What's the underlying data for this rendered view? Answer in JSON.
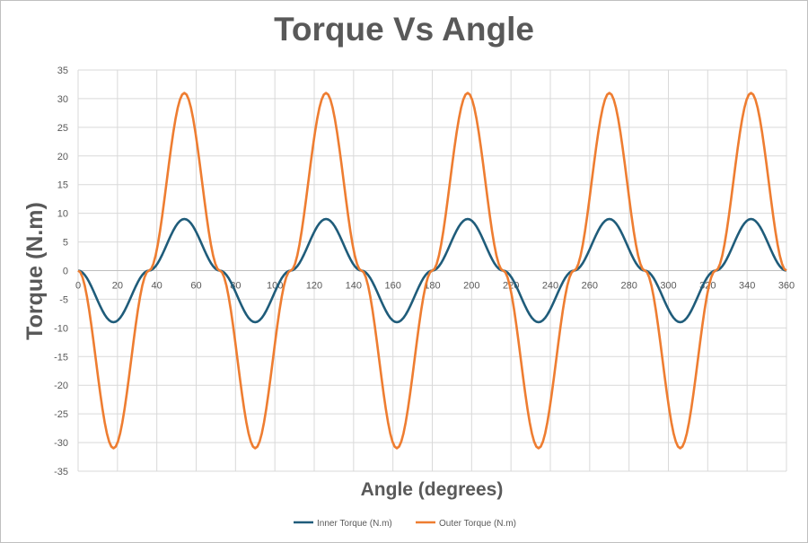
{
  "chart_data": {
    "type": "line",
    "title": "Torque Vs Angle",
    "xlabel": "Angle (degrees)",
    "ylabel": "Torque (N.m)",
    "xlim": [
      0,
      360
    ],
    "ylim": [
      -35,
      35
    ],
    "x_ticks": [
      "0",
      "20",
      "40",
      "60",
      "80",
      "100",
      "120",
      "140",
      "160",
      "180",
      "200",
      "220",
      "240",
      "260",
      "280",
      "300",
      "320",
      "340",
      "360"
    ],
    "y_ticks": [
      "35",
      "30",
      "25",
      "20",
      "15",
      "10",
      "5",
      "0",
      "-5",
      "-10",
      "-15",
      "-20",
      "-25",
      "-30",
      "-35"
    ],
    "grid": true,
    "legend_position": "bottom",
    "x": [
      0,
      18,
      36,
      54,
      72,
      90,
      108,
      126,
      144,
      162,
      180,
      198,
      216,
      234,
      252,
      270,
      288,
      306,
      324,
      342,
      360
    ],
    "series": [
      {
        "name": "Inner Torque (N.m)",
        "color": "#1f5c7a",
        "values": [
          0,
          -9,
          0,
          9,
          0,
          -9,
          0,
          9,
          0,
          -9,
          0,
          9,
          0,
          -9,
          0,
          9,
          0,
          -9,
          0,
          9,
          0
        ]
      },
      {
        "name": "Outer Torque (N.m)",
        "color": "#ee7d31",
        "values": [
          0,
          -31,
          0,
          31,
          0,
          -31,
          0,
          31,
          0,
          -31,
          0,
          31,
          0,
          -31,
          0,
          31,
          0,
          -31,
          0,
          31,
          0
        ]
      }
    ]
  }
}
